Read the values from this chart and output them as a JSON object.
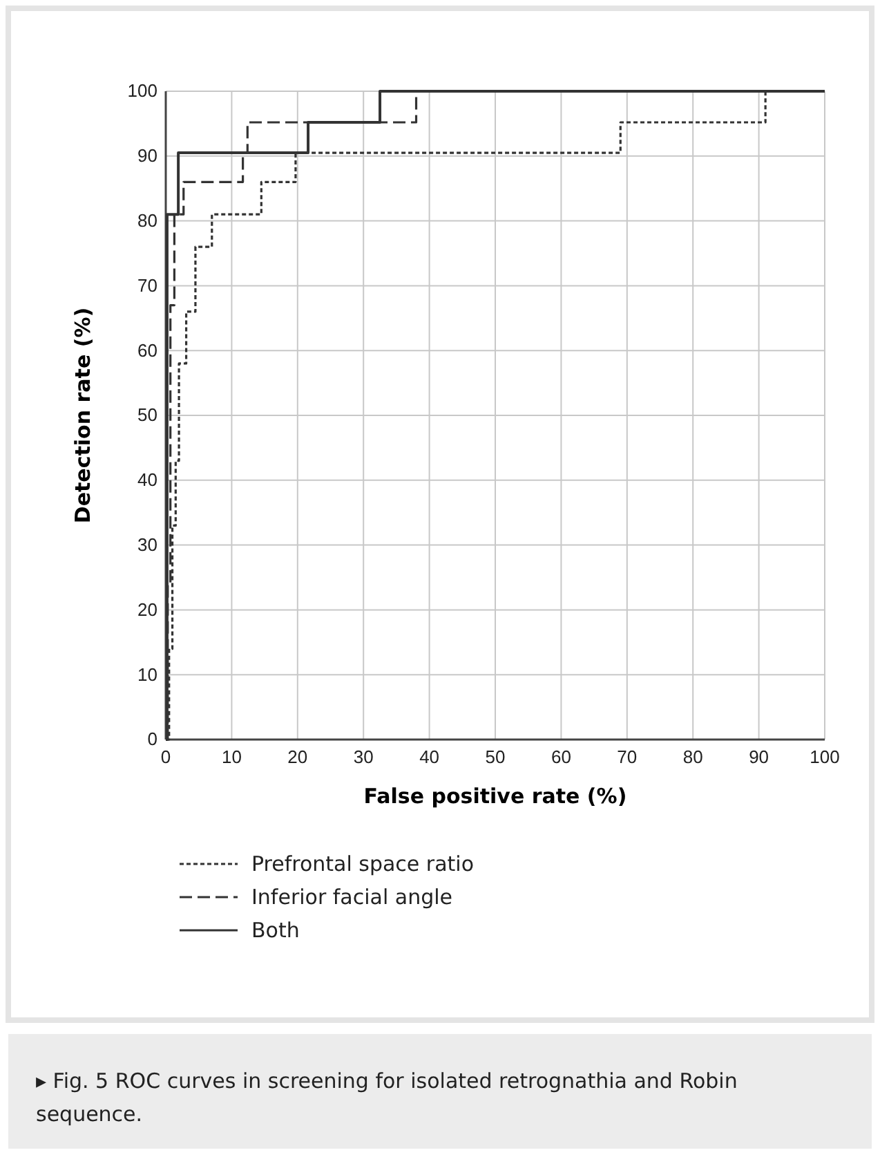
{
  "chart_data": {
    "type": "line",
    "xlabel": "False positive rate (%)",
    "ylabel": "Detection rate (%)",
    "xlim": [
      0,
      100
    ],
    "ylim": [
      0,
      100
    ],
    "xticks": [
      0,
      10,
      20,
      30,
      40,
      50,
      60,
      70,
      80,
      90,
      100
    ],
    "yticks": [
      0,
      10,
      20,
      30,
      40,
      50,
      60,
      70,
      80,
      90,
      100
    ],
    "grid": true,
    "legend": "bottom",
    "series": [
      {
        "name": "Prefrontal space ratio",
        "color": "#333333",
        "line_style": "dotted",
        "x": [
          0,
          0.5,
          0.5,
          1,
          1,
          1.5,
          1.5,
          2,
          2,
          3.1,
          3.1,
          4.5,
          4.5,
          7,
          7,
          14.5,
          14.5,
          19.7,
          19.7,
          69,
          69,
          91,
          91,
          100
        ],
        "values": [
          0,
          0,
          14,
          14,
          33,
          33,
          43,
          43,
          58,
          58,
          66,
          66,
          76,
          76,
          81,
          81,
          86,
          86,
          90.5,
          90.5,
          95.2,
          95.2,
          100,
          100
        ]
      },
      {
        "name": "Inferior facial angle",
        "color": "#333333",
        "line_style": "dashed",
        "x": [
          0,
          0.3,
          0.3,
          0.7,
          0.7,
          1.3,
          1.3,
          2.7,
          2.7,
          11.7,
          11.7,
          12.4,
          12.4,
          38,
          38,
          100
        ],
        "values": [
          0,
          0,
          24,
          24,
          67,
          67,
          81,
          81,
          86,
          86,
          90.5,
          90.5,
          95.2,
          95.2,
          100,
          100
        ]
      },
      {
        "name": "Both",
        "color": "#333333",
        "line_style": "solid",
        "x": [
          0,
          0.2,
          0.2,
          1.9,
          1.9,
          21.6,
          21.6,
          32.5,
          32.5,
          100
        ],
        "values": [
          0,
          0,
          81,
          81,
          90.5,
          90.5,
          95.2,
          95.2,
          100,
          100
        ]
      }
    ],
    "annotations": [
      "▸ Fig. 5  ROC curves in screening for isolated retrognathia and Robin sequence."
    ]
  }
}
